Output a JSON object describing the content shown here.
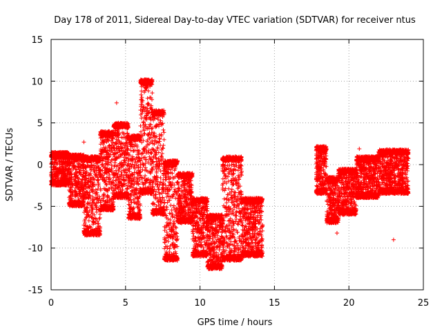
{
  "chart_data": {
    "type": "scatter",
    "title": "Day 178 of 2011, Sidereal Day-to-day VTEC variation (SDTVAR) for receiver ntus",
    "xlabel": "GPS time / hours",
    "ylabel": "SDTVAR / TECUs",
    "xlim": [
      0,
      25
    ],
    "ylim": [
      -15,
      15
    ],
    "xticks": [
      0,
      5,
      10,
      15,
      20,
      25
    ],
    "yticks": [
      -15,
      -10,
      -5,
      0,
      5,
      10,
      15
    ],
    "grid": true,
    "marker": "+",
    "color": "#ff0000",
    "series": [
      {
        "name": "SDTVAR",
        "envelope_ranges": [
          {
            "x": [
              0.0,
              1.2
            ],
            "y_low": -2.5,
            "y_high": 1.5
          },
          {
            "x": [
              1.2,
              2.2
            ],
            "y_low": -5.0,
            "y_high": 1.2
          },
          {
            "x": [
              2.2,
              3.3
            ],
            "y_low": -8.5,
            "y_high": 1.0
          },
          {
            "x": [
              3.3,
              4.2
            ],
            "y_low": -5.5,
            "y_high": 4.0
          },
          {
            "x": [
              4.2,
              5.2
            ],
            "y_low": -4.0,
            "y_high": 5.0
          },
          {
            "x": [
              5.2,
              6.0
            ],
            "y_low": -6.5,
            "y_high": 3.5
          },
          {
            "x": [
              6.0,
              6.8
            ],
            "y_low": -3.5,
            "y_high": 10.2
          },
          {
            "x": [
              6.8,
              7.6
            ],
            "y_low": -6.0,
            "y_high": 6.5
          },
          {
            "x": [
              7.6,
              8.5
            ],
            "y_low": -11.5,
            "y_high": 0.5
          },
          {
            "x": [
              8.5,
              9.5
            ],
            "y_low": -7.0,
            "y_high": -1.0
          },
          {
            "x": [
              9.5,
              10.5
            ],
            "y_low": -11.0,
            "y_high": -4.0
          },
          {
            "x": [
              10.5,
              11.5
            ],
            "y_low": -12.5,
            "y_high": -6.0
          },
          {
            "x": [
              11.5,
              12.8
            ],
            "y_low": -11.5,
            "y_high": 1.0
          },
          {
            "x": [
              12.8,
              14.2
            ],
            "y_low": -11.0,
            "y_high": -4.0
          },
          {
            "x": [
              17.8,
              18.5
            ],
            "y_low": -3.5,
            "y_high": 2.2
          },
          {
            "x": [
              18.5,
              19.3
            ],
            "y_low": -7.0,
            "y_high": -1.5
          },
          {
            "x": [
              19.3,
              20.5
            ],
            "y_low": -6.0,
            "y_high": -0.5
          },
          {
            "x": [
              20.5,
              22.0
            ],
            "y_low": -4.0,
            "y_high": 1.0
          },
          {
            "x": [
              22.0,
              24.0
            ],
            "y_low": -3.5,
            "y_high": 1.8
          }
        ],
        "outliers": [
          {
            "x": 4.4,
            "y": 7.4
          },
          {
            "x": 2.2,
            "y": 2.7
          },
          {
            "x": 1.9,
            "y": -5.0
          },
          {
            "x": 19.2,
            "y": -8.2
          },
          {
            "x": 20.7,
            "y": 1.9
          },
          {
            "x": 23.0,
            "y": -9.0
          },
          {
            "x": 23.1,
            "y": -3.3
          }
        ]
      }
    ]
  }
}
